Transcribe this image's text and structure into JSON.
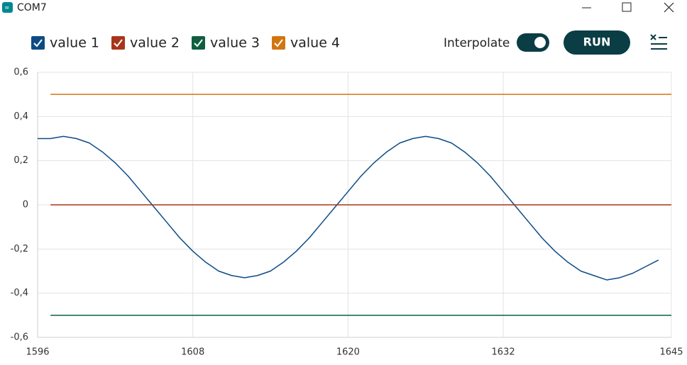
{
  "window": {
    "title": "COM7"
  },
  "toolbar": {
    "interpolate": "Interpolate",
    "run": "RUN"
  },
  "chart_data": {
    "type": "line",
    "series": [
      {
        "name": "value 1",
        "color": "#0d4b85",
        "x": [
          1596,
          1597,
          1598,
          1599,
          1600,
          1601,
          1602,
          1603,
          1604,
          1605,
          1606,
          1607,
          1608,
          1609,
          1610,
          1611,
          1612,
          1613,
          1614,
          1615,
          1616,
          1617,
          1618,
          1619,
          1620,
          1621,
          1622,
          1623,
          1624,
          1625,
          1626,
          1627,
          1628,
          1629,
          1630,
          1631,
          1632,
          1633,
          1634,
          1635,
          1636,
          1637,
          1638,
          1639,
          1640,
          1641,
          1642,
          1643,
          1644
        ],
        "values": [
          0.3,
          0.3,
          0.31,
          0.3,
          0.28,
          0.24,
          0.19,
          0.13,
          0.06,
          -0.01,
          -0.08,
          -0.15,
          -0.21,
          -0.26,
          -0.3,
          -0.32,
          -0.33,
          -0.32,
          -0.3,
          -0.26,
          -0.21,
          -0.15,
          -0.08,
          -0.01,
          0.06,
          0.13,
          0.19,
          0.24,
          0.28,
          0.3,
          0.31,
          0.3,
          0.28,
          0.24,
          0.19,
          0.13,
          0.06,
          -0.01,
          -0.08,
          -0.15,
          -0.21,
          -0.26,
          -0.3,
          -0.32,
          -0.34,
          -0.33,
          -0.31,
          -0.28,
          -0.25
        ]
      },
      {
        "name": "value 2",
        "color": "#a8351a",
        "x": [
          1597,
          1645
        ],
        "values": [
          0,
          0
        ]
      },
      {
        "name": "value 3",
        "color": "#0f5f3f",
        "x": [
          1597,
          1645
        ],
        "values": [
          -0.5,
          -0.5
        ]
      },
      {
        "name": "value 4",
        "color": "#d27510",
        "x": [
          1597,
          1645
        ],
        "values": [
          0.5,
          0.5
        ]
      }
    ],
    "xlim": [
      1596,
      1645
    ],
    "xticks": [
      1596,
      1608,
      1620,
      1632,
      1645
    ],
    "ylim": [
      -0.6,
      0.6
    ],
    "yticks": [
      {
        "value": 0.6,
        "label": "0,6"
      },
      {
        "value": 0.4,
        "label": "0,4"
      },
      {
        "value": 0.2,
        "label": "0,2"
      },
      0,
      {
        "value": -0.2,
        "label": "-0,2"
      },
      {
        "value": -0.4,
        "label": "-0,4"
      },
      {
        "value": -0.6,
        "label": "-0,6"
      }
    ],
    "grid": true
  }
}
